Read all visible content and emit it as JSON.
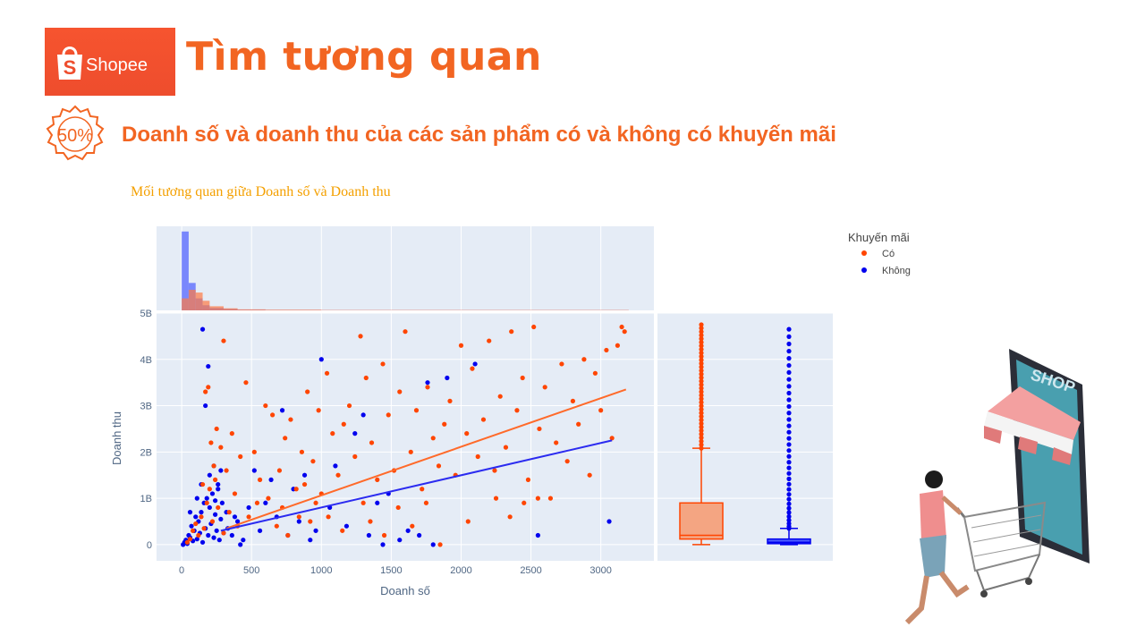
{
  "header": {
    "logo_text": "Shopee",
    "title": "Tìm tương quan",
    "badge_text": "50%",
    "subtitle": "Doanh số và doanh thu của các sản phẩm có và không có khuyến mãi"
  },
  "colors": {
    "brand": "#ee4d2d",
    "title": "#f26522",
    "chart_title": "#f4a000",
    "series_co": "#ff4500",
    "series_khong": "#0000ee",
    "plot_bg": "#e5ecf6"
  },
  "chart_data": {
    "type": "scatter",
    "title": "Mối tương quan giữa Doanh số và Doanh thu",
    "xlabel": "Doanh số",
    "ylabel": "Doanh thu",
    "xlim": [
      -180,
      3380
    ],
    "ylim": [
      -0.35,
      5.0
    ],
    "x_ticks": [
      0,
      500,
      1000,
      1500,
      2000,
      2500,
      3000
    ],
    "x_tick_labels": [
      "0",
      "500",
      "1000",
      "1500",
      "2000",
      "2500",
      "3000"
    ],
    "y_ticks": [
      0,
      1,
      2,
      3,
      4,
      5
    ],
    "y_tick_labels": [
      "0",
      "1B",
      "2B",
      "3B",
      "4B",
      "5B"
    ],
    "grid": true,
    "legend_title": "Khuyến mãi",
    "legend_position": "top-right",
    "series": [
      {
        "name": "Có",
        "color": "#ff4500",
        "trendline": [
          [
            320,
            0.35
          ],
          [
            3180,
            3.35
          ]
        ],
        "points": [
          [
            40,
            0.05
          ],
          [
            60,
            0.12
          ],
          [
            80,
            0.3
          ],
          [
            100,
            0.45
          ],
          [
            120,
            0.2
          ],
          [
            140,
            0.6
          ],
          [
            160,
            0.35
          ],
          [
            180,
            0.9
          ],
          [
            200,
            1.2
          ],
          [
            220,
            0.5
          ],
          [
            240,
            1.4
          ],
          [
            260,
            0.8
          ],
          [
            280,
            2.1
          ],
          [
            300,
            0.25
          ],
          [
            320,
            1.6
          ],
          [
            340,
            0.7
          ],
          [
            360,
            2.4
          ],
          [
            380,
            1.1
          ],
          [
            400,
            0.4
          ],
          [
            420,
            1.9
          ],
          [
            150,
            1.3
          ],
          [
            170,
            3.3
          ],
          [
            190,
            3.4
          ],
          [
            210,
            2.2
          ],
          [
            230,
            1.7
          ],
          [
            250,
            2.5
          ],
          [
            300,
            4.4
          ],
          [
            460,
            3.5
          ],
          [
            520,
            2.0
          ],
          [
            560,
            1.4
          ],
          [
            600,
            3.0
          ],
          [
            650,
            2.8
          ],
          [
            700,
            1.6
          ],
          [
            740,
            2.3
          ],
          [
            780,
            2.7
          ],
          [
            820,
            1.2
          ],
          [
            860,
            2.0
          ],
          [
            900,
            3.3
          ],
          [
            940,
            1.8
          ],
          [
            980,
            2.9
          ],
          [
            1000,
            1.1
          ],
          [
            1040,
            3.7
          ],
          [
            1080,
            2.4
          ],
          [
            1120,
            1.5
          ],
          [
            1160,
            2.6
          ],
          [
            1200,
            3.0
          ],
          [
            1240,
            1.9
          ],
          [
            1280,
            4.5
          ],
          [
            1300,
            0.9
          ],
          [
            1320,
            3.6
          ],
          [
            1360,
            2.2
          ],
          [
            1400,
            1.4
          ],
          [
            1440,
            3.9
          ],
          [
            1480,
            2.8
          ],
          [
            1520,
            1.6
          ],
          [
            1560,
            3.3
          ],
          [
            1600,
            4.6
          ],
          [
            1640,
            2.0
          ],
          [
            1680,
            2.9
          ],
          [
            1720,
            1.2
          ],
          [
            1760,
            3.4
          ],
          [
            1800,
            2.3
          ],
          [
            1840,
            1.7
          ],
          [
            1880,
            2.6
          ],
          [
            1920,
            3.1
          ],
          [
            1960,
            1.5
          ],
          [
            2000,
            4.3
          ],
          [
            2040,
            2.4
          ],
          [
            2080,
            3.8
          ],
          [
            2120,
            1.9
          ],
          [
            2160,
            2.7
          ],
          [
            2200,
            4.4
          ],
          [
            2240,
            1.6
          ],
          [
            2280,
            3.2
          ],
          [
            2320,
            2.1
          ],
          [
            2360,
            4.6
          ],
          [
            2400,
            2.9
          ],
          [
            2440,
            3.6
          ],
          [
            2480,
            1.4
          ],
          [
            2520,
            4.7
          ],
          [
            2560,
            2.5
          ],
          [
            2600,
            3.4
          ],
          [
            2640,
            1.0
          ],
          [
            2680,
            2.2
          ],
          [
            2720,
            3.9
          ],
          [
            2760,
            1.8
          ],
          [
            2800,
            3.1
          ],
          [
            2840,
            2.6
          ],
          [
            2880,
            4.0
          ],
          [
            2920,
            1.5
          ],
          [
            2960,
            3.7
          ],
          [
            3000,
            2.9
          ],
          [
            3040,
            4.2
          ],
          [
            3080,
            2.3
          ],
          [
            3120,
            4.3
          ],
          [
            3150,
            4.7
          ],
          [
            3170,
            4.6
          ],
          [
            1050,
            0.6
          ],
          [
            1150,
            0.3
          ],
          [
            1350,
            0.5
          ],
          [
            1450,
            0.2
          ],
          [
            1550,
            0.8
          ],
          [
            1650,
            0.4
          ],
          [
            1750,
            0.9
          ],
          [
            1850,
            0.0
          ],
          [
            2050,
            0.5
          ],
          [
            2250,
            1.0
          ],
          [
            2350,
            0.6
          ],
          [
            2450,
            0.9
          ],
          [
            2550,
            1.0
          ],
          [
            480,
            0.6
          ],
          [
            540,
            0.9
          ],
          [
            620,
            1.0
          ],
          [
            680,
            0.4
          ],
          [
            720,
            0.8
          ],
          [
            760,
            0.2
          ],
          [
            840,
            0.6
          ],
          [
            880,
            1.3
          ],
          [
            920,
            0.5
          ],
          [
            960,
            0.9
          ]
        ]
      },
      {
        "name": "Không",
        "color": "#0000ee",
        "trendline": [
          [
            280,
            0.3
          ],
          [
            3080,
            2.25
          ]
        ],
        "points": [
          [
            10,
            0.0
          ],
          [
            20,
            0.05
          ],
          [
            30,
            0.1
          ],
          [
            40,
            0.02
          ],
          [
            50,
            0.2
          ],
          [
            60,
            0.15
          ],
          [
            70,
            0.4
          ],
          [
            80,
            0.08
          ],
          [
            90,
            0.3
          ],
          [
            100,
            0.6
          ],
          [
            110,
            0.12
          ],
          [
            120,
            0.5
          ],
          [
            130,
            0.25
          ],
          [
            140,
            0.7
          ],
          [
            150,
            0.05
          ],
          [
            160,
            0.9
          ],
          [
            170,
            0.35
          ],
          [
            180,
            1.0
          ],
          [
            190,
            0.2
          ],
          [
            200,
            0.8
          ],
          [
            210,
            0.45
          ],
          [
            220,
            1.1
          ],
          [
            230,
            0.15
          ],
          [
            240,
            0.65
          ],
          [
            250,
            0.3
          ],
          [
            260,
            1.2
          ],
          [
            270,
            0.1
          ],
          [
            280,
            0.55
          ],
          [
            290,
            0.9
          ],
          [
            300,
            0.25
          ],
          [
            150,
            4.65
          ],
          [
            190,
            3.85
          ],
          [
            170,
            3.0
          ],
          [
            230,
            1.7
          ],
          [
            260,
            1.3
          ],
          [
            320,
            0.7
          ],
          [
            360,
            0.2
          ],
          [
            400,
            0.5
          ],
          [
            440,
            0.1
          ],
          [
            480,
            0.8
          ],
          [
            520,
            1.6
          ],
          [
            560,
            0.3
          ],
          [
            600,
            0.9
          ],
          [
            640,
            1.4
          ],
          [
            680,
            0.6
          ],
          [
            720,
            2.9
          ],
          [
            760,
            0.2
          ],
          [
            800,
            1.2
          ],
          [
            840,
            0.5
          ],
          [
            880,
            1.5
          ],
          [
            920,
            0.1
          ],
          [
            960,
            0.3
          ],
          [
            1000,
            4.0
          ],
          [
            1060,
            0.8
          ],
          [
            1100,
            1.7
          ],
          [
            1180,
            0.4
          ],
          [
            1240,
            2.4
          ],
          [
            1300,
            2.8
          ],
          [
            1340,
            0.2
          ],
          [
            1400,
            0.9
          ],
          [
            1440,
            0.0
          ],
          [
            1480,
            1.1
          ],
          [
            1560,
            0.1
          ],
          [
            1620,
            0.3
          ],
          [
            1700,
            0.2
          ],
          [
            1760,
            3.5
          ],
          [
            1800,
            0.0
          ],
          [
            1900,
            3.6
          ],
          [
            2100,
            3.9
          ],
          [
            2550,
            0.2
          ],
          [
            3060,
            0.5
          ],
          [
            60,
            0.7
          ],
          [
            110,
            1.0
          ],
          [
            140,
            1.3
          ],
          [
            200,
            1.5
          ],
          [
            240,
            0.95
          ],
          [
            280,
            1.6
          ],
          [
            330,
            0.35
          ],
          [
            380,
            0.6
          ],
          [
            420,
            0.0
          ]
        ]
      }
    ],
    "histograms": {
      "bins": [
        0,
        50,
        100,
        150,
        200,
        300,
        400,
        600,
        1000,
        3200
      ],
      "Có": [
        35,
        60,
        52,
        28,
        12,
        6,
        3,
        2,
        1
      ],
      "Không": [
        230,
        80,
        35,
        15,
        7,
        4,
        2,
        1,
        0.5
      ]
    },
    "box_plots": [
      {
        "name": "Có",
        "min": 0,
        "q1": 0.12,
        "median": 0.2,
        "q3": 0.9,
        "whisker_high": 2.08,
        "max": 4.75
      },
      {
        "name": "Không",
        "min": 0,
        "q1": 0.02,
        "median": 0.05,
        "q3": 0.12,
        "whisker_high": 0.35,
        "max": 4.65
      }
    ]
  }
}
